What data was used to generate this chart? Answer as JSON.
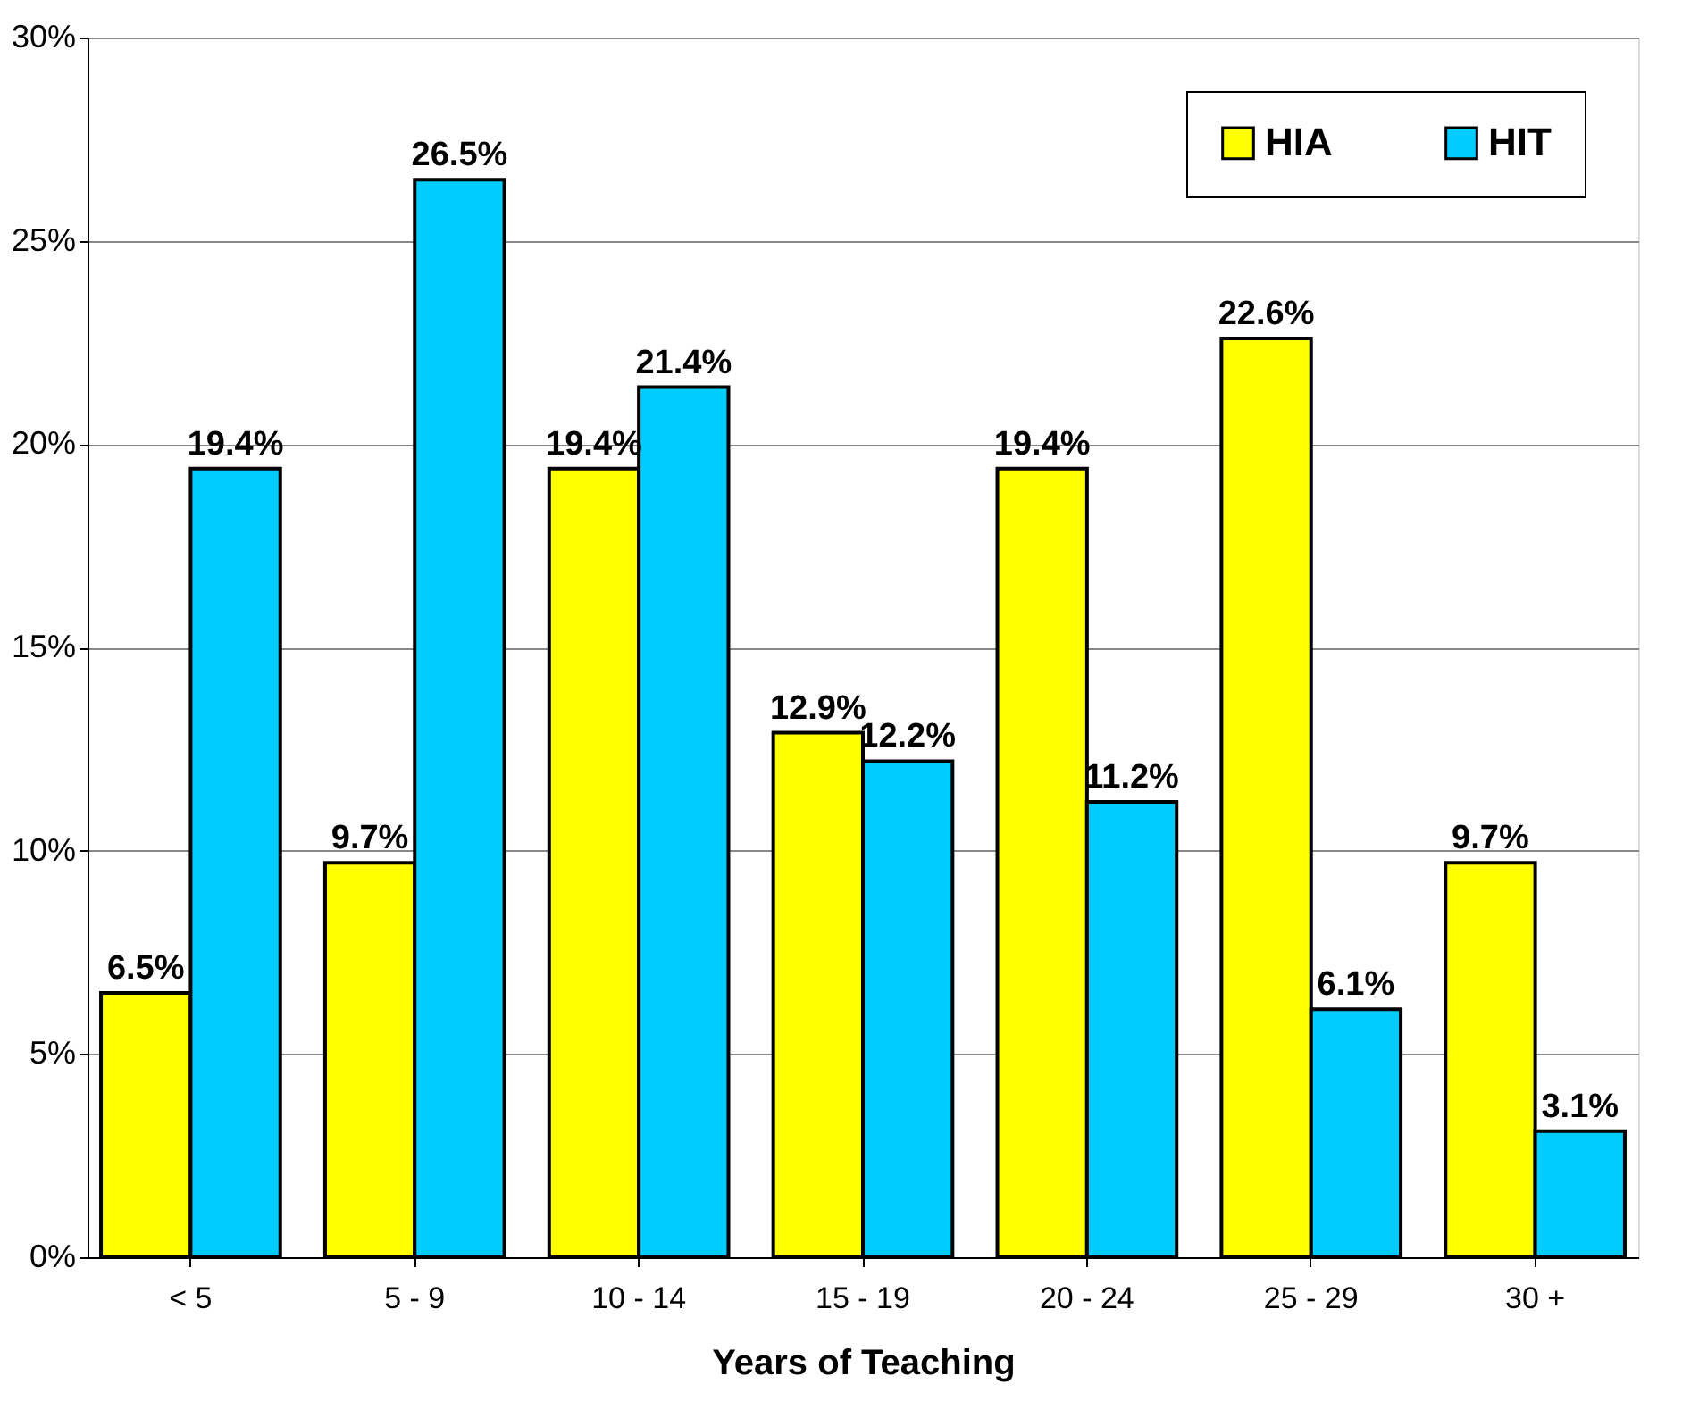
{
  "chart_data": {
    "type": "bar",
    "xlabel": "Years of Teaching",
    "categories": [
      "< 5",
      "5 - 9",
      "10 - 14",
      "15 - 19",
      "20 - 24",
      "25 - 29",
      "30 +"
    ],
    "series": [
      {
        "name": "HIA",
        "color": "#ffff00",
        "values": [
          6.5,
          9.7,
          19.4,
          12.9,
          19.4,
          22.6,
          9.7
        ],
        "value_labels": [
          "6.5%",
          "9.7%",
          "19.4%",
          "12.9%",
          "19.4%",
          "22.6%",
          "9.7%"
        ]
      },
      {
        "name": "HIT",
        "color": "#00ccff",
        "values": [
          19.4,
          26.5,
          21.4,
          12.2,
          11.2,
          6.1,
          3.1
        ],
        "value_labels": [
          "19.4%",
          "26.5%",
          "21.4%",
          "12.2%",
          "11.2%",
          "6.1%",
          "3.1%"
        ]
      }
    ],
    "ylim": [
      0,
      30
    ],
    "yticks": [
      {
        "value": 0,
        "label": "0%"
      },
      {
        "value": 5,
        "label": "5%"
      },
      {
        "value": 10,
        "label": "10%"
      },
      {
        "value": 15,
        "label": "15%"
      },
      {
        "value": 20,
        "label": "20%"
      },
      {
        "value": 25,
        "label": "25%"
      },
      {
        "value": 30,
        "label": "30%"
      }
    ],
    "grid": "y",
    "legend": "top right"
  }
}
